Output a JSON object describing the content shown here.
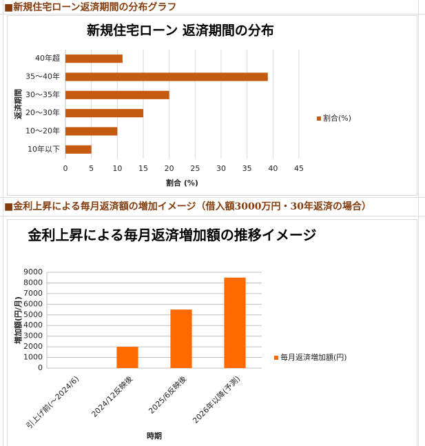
{
  "headings": [
    "■新規住宅ローン返済期間の分布グラフ",
    "■金利上昇による毎月返済額の増加イメージ（借入額3000万円・30年返済の場合）"
  ],
  "chart_data": [
    {
      "type": "hbar",
      "title": "新規住宅ローン 返済期間の分布",
      "categories": [
        "40年超",
        "35～40年",
        "30～35年",
        "20～30年",
        "10～20年",
        "10年以下"
      ],
      "series": [
        {
          "name": "割合(%)",
          "color": "#c55a11",
          "values": [
            11,
            39,
            20,
            15,
            10,
            5
          ]
        }
      ],
      "xlim": [
        0,
        45
      ],
      "xticks": [
        0,
        5,
        10,
        15,
        20,
        25,
        30,
        35,
        40,
        45
      ],
      "x_label": "割合 (%)",
      "y_label": "返済期間",
      "grid": true,
      "legend": "right"
    },
    {
      "type": "bar",
      "title": "金利上昇による毎月返済増加額の推移イメージ",
      "categories": [
        "引上げ前(～2024/6)",
        "2024/12反映後",
        "2025/6反映後",
        "2026年以降(予測)"
      ],
      "series": [
        {
          "name": "毎月返済増加額(円)",
          "color": "#ff6a00",
          "values": [
            0,
            2000,
            5500,
            8500
          ]
        }
      ],
      "ylim": [
        0,
        9000
      ],
      "yticks": [
        0,
        1000,
        2000,
        3000,
        4000,
        5000,
        6000,
        7000,
        8000,
        9000
      ],
      "x_label": "時期",
      "y_label": "増加額(円/月)",
      "grid": true,
      "legend": "right"
    }
  ]
}
